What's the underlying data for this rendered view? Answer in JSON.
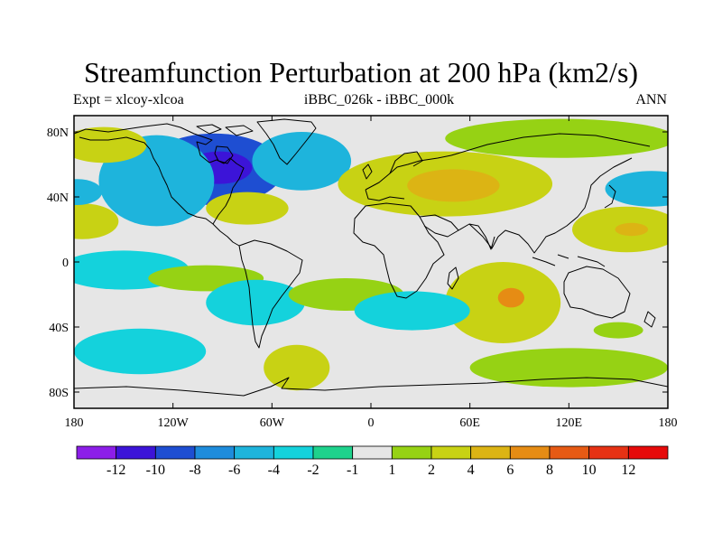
{
  "figure": {
    "title": "Streamfunction Perturbation at 200 hPa (km2/s)",
    "left_label": "Expt = xlcoy-xlcoa",
    "center_label": "iBBC_026k - iBBC_000k",
    "right_label": "ANN"
  },
  "chart_data": {
    "type": "heatmap",
    "projection": "cylindrical-equidistant",
    "variable": "Streamfunction Perturbation at 200 hPa (km2/s)",
    "lon_range": [
      -180,
      180
    ],
    "lat_range": [
      -90,
      90
    ],
    "x_ticks": [
      {
        "lon": -180,
        "label": "180"
      },
      {
        "lon": -120,
        "label": "120W"
      },
      {
        "lon": -60,
        "label": "60W"
      },
      {
        "lon": 0,
        "label": "0"
      },
      {
        "lon": 60,
        "label": "60E"
      },
      {
        "lon": 120,
        "label": "120E"
      },
      {
        "lon": 180,
        "label": "180"
      }
    ],
    "y_ticks": [
      {
        "lat": 80,
        "label": "80N"
      },
      {
        "lat": 40,
        "label": "40N"
      },
      {
        "lat": 0,
        "label": "0"
      },
      {
        "lat": -40,
        "label": "40S"
      },
      {
        "lat": -80,
        "label": "80S"
      }
    ],
    "colorbar": {
      "levels": [
        -12,
        -10,
        -8,
        -6,
        -4,
        -2,
        -1,
        1,
        2,
        4,
        6,
        8,
        10,
        12
      ],
      "labels": [
        "-12",
        "-10",
        "-8",
        "-6",
        "-4",
        "-2",
        "-1",
        "1",
        "2",
        "4",
        "6",
        "8",
        "10",
        "12"
      ],
      "colors": [
        "#8c1ee8",
        "#3c14d8",
        "#1e4ed2",
        "#1e8cdc",
        "#1eb4dc",
        "#14d2dc",
        "#1ed28c",
        "#e6e6e6",
        "#96d214",
        "#c8d214",
        "#dcb414",
        "#e68c14",
        "#e65a14",
        "#e63214",
        "#e60a0a"
      ]
    },
    "background_color": "#e6e6e6",
    "anomalies": [
      {
        "name": "north-america-low",
        "lon": -95,
        "lat": 57,
        "rx": 42,
        "ry": 22,
        "level": -8
      },
      {
        "name": "north-america-low-core",
        "lon": -92,
        "lat": 58,
        "rx": 20,
        "ry": 10,
        "level": -10
      },
      {
        "name": "north-pacific-low",
        "lon": -130,
        "lat": 50,
        "rx": 35,
        "ry": 28,
        "level": -4
      },
      {
        "name": "north-atlantic-low",
        "lon": -42,
        "lat": 62,
        "rx": 30,
        "ry": 18,
        "level": -4
      },
      {
        "name": "arctic-high-west",
        "lon": -162,
        "lat": 72,
        "rx": 26,
        "ry": 11,
        "level": 4
      },
      {
        "name": "arctic-high-east",
        "lon": 115,
        "lat": 76,
        "rx": 70,
        "ry": 12,
        "level": 2
      },
      {
        "name": "eurasia-high",
        "lon": 45,
        "lat": 48,
        "rx": 65,
        "ry": 20,
        "level": 4
      },
      {
        "name": "eurasia-high-core",
        "lon": 50,
        "lat": 47,
        "rx": 28,
        "ry": 10,
        "level": 6
      },
      {
        "name": "us-east-high",
        "lon": -75,
        "lat": 33,
        "rx": 25,
        "ry": 10,
        "level": 4
      },
      {
        "name": "pacific-west-high",
        "lon": -175,
        "lat": 25,
        "rx": 22,
        "ry": 11,
        "level": 4
      },
      {
        "name": "west-pacific-high",
        "lon": 155,
        "lat": 20,
        "rx": 33,
        "ry": 14,
        "level": 4
      },
      {
        "name": "west-pacific-high-core",
        "lon": 158,
        "lat": 20,
        "rx": 10,
        "ry": 4,
        "level": 6
      },
      {
        "name": "nw-pacific-low",
        "lon": 170,
        "lat": 45,
        "rx": 28,
        "ry": 11,
        "level": -4
      },
      {
        "name": "dateline-low",
        "lon": -178,
        "lat": 43,
        "rx": 15,
        "ry": 8,
        "level": -4
      },
      {
        "name": "tropical-pacific-low",
        "lon": -150,
        "lat": -5,
        "rx": 40,
        "ry": 12,
        "level": -2
      },
      {
        "name": "south-pacific-high",
        "lon": -100,
        "lat": -10,
        "rx": 35,
        "ry": 8,
        "level": 2
      },
      {
        "name": "south-america-low",
        "lon": -70,
        "lat": -25,
        "rx": 30,
        "ry": 14,
        "level": -2
      },
      {
        "name": "south-atlantic-high",
        "lon": -15,
        "lat": -20,
        "rx": 35,
        "ry": 10,
        "level": 2
      },
      {
        "name": "indian-ocean-high",
        "lon": 80,
        "lat": -25,
        "rx": 35,
        "ry": 25,
        "level": 4
      },
      {
        "name": "indian-ocean-high-core",
        "lon": 85,
        "lat": -22,
        "rx": 8,
        "ry": 6,
        "level": 8
      },
      {
        "name": "southern-africa-low",
        "lon": 25,
        "lat": -30,
        "rx": 35,
        "ry": 12,
        "level": -2
      },
      {
        "name": "south-pacific-low",
        "lon": -140,
        "lat": -55,
        "rx": 40,
        "ry": 14,
        "level": -2
      },
      {
        "name": "drake-passage-high",
        "lon": -45,
        "lat": -65,
        "rx": 20,
        "ry": 14,
        "level": 4
      },
      {
        "name": "southern-ocean-high",
        "lon": 120,
        "lat": -65,
        "rx": 60,
        "ry": 12,
        "level": 2
      },
      {
        "name": "southwest-pacific-high",
        "lon": 150,
        "lat": -42,
        "rx": 15,
        "ry": 5,
        "level": 2
      }
    ]
  }
}
